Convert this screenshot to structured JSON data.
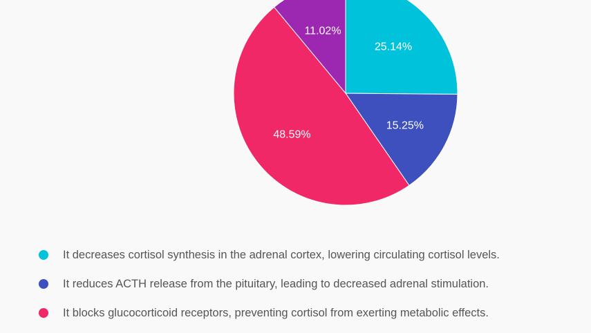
{
  "chart_data": {
    "type": "pie",
    "start_angle": "top, clockwise",
    "slices": [
      {
        "label": "It decreases cortisol synthesis in the adrenal cortex, lowering circulating cortisol levels.",
        "value": 25.14,
        "display": "25.14%",
        "color": "#00c2db"
      },
      {
        "label": "It reduces ACTH release from the pituitary, leading to decreased adrenal stimulation.",
        "value": 15.25,
        "display": "15.25%",
        "color": "#3d50bd"
      },
      {
        "label": "It blocks glucocorticoid receptors, preventing cortisol from exerting metabolic effects.",
        "value": 48.59,
        "display": "48.59%",
        "color": "#f02868"
      },
      {
        "label": "",
        "value": 11.02,
        "display": "11.02%",
        "color": "#9c27b0"
      }
    ],
    "legend_position": "bottom"
  }
}
